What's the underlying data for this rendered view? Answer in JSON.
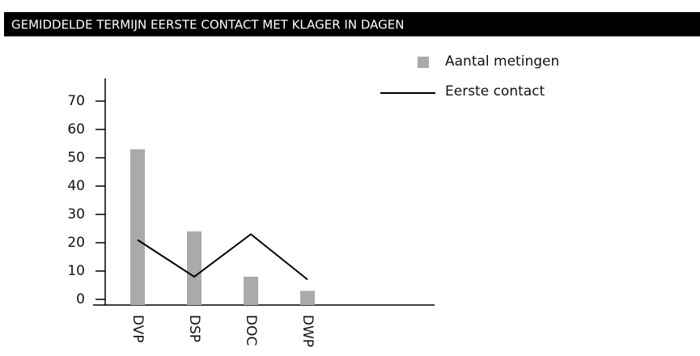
{
  "chart_data": {
    "type": "bar",
    "title": "GEMIDDELDE TERMIJN EERSTE CONTACT MET KLAGER IN DAGEN",
    "categories": [
      "DVP",
      "DSP",
      "DOC",
      "DWP"
    ],
    "series": [
      {
        "name": "Aantal metingen",
        "type": "bar",
        "color": "#aaaaaa",
        "values": [
          55,
          26,
          10,
          5
        ]
      },
      {
        "name": "Eerste contact",
        "type": "line",
        "color": "#000000",
        "values": [
          23,
          10,
          25,
          9
        ]
      }
    ],
    "ylim": [
      0,
      80
    ],
    "yticks": [
      0,
      10,
      20,
      30,
      40,
      50,
      60,
      70
    ],
    "grid": false,
    "legend": "top-right"
  }
}
